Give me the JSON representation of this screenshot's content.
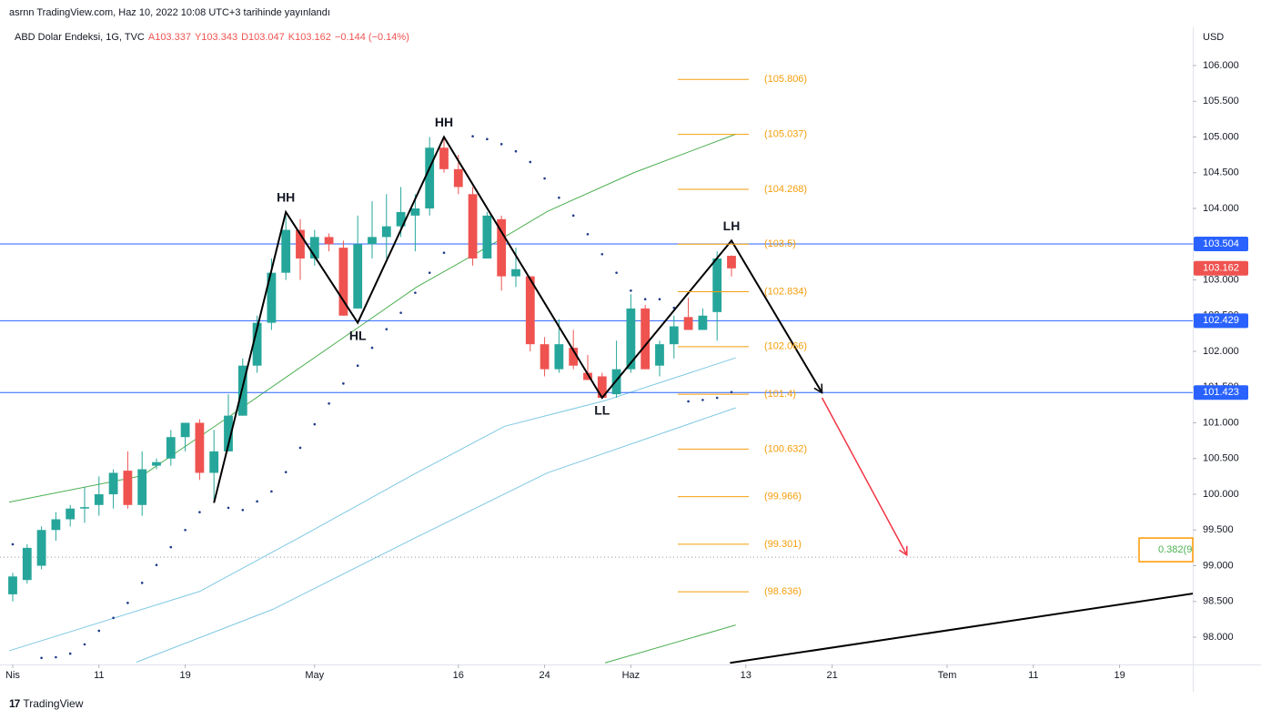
{
  "header": {
    "publisher": "asrnn TradingView.com, Haz 10, 2022 10:08 UTC+3 tarihinde yayınlandı",
    "symbol": "ABD Dolar Endeksi, 1G, TVC",
    "ohlc": [
      "A103.337",
      "Y103.343",
      "D103.047",
      "K103.162"
    ],
    "change": "−0.144 (−0.14%)"
  },
  "chart_data": {
    "type": "candlestick",
    "currency": "USD",
    "x": [
      0,
      1,
      2,
      3,
      4,
      5,
      6,
      7,
      8,
      9,
      10,
      11,
      12,
      13,
      14,
      15,
      16,
      17,
      18,
      19,
      20,
      21,
      22,
      23,
      24,
      25,
      26,
      27,
      28,
      29,
      30,
      31,
      32,
      33,
      34,
      35,
      36,
      37,
      38,
      39,
      40,
      41,
      42,
      43,
      44,
      45,
      46,
      47,
      48,
      49,
      50
    ],
    "open": [
      98.6,
      98.8,
      99.0,
      99.5,
      99.65,
      99.8,
      99.85,
      100.0,
      100.33,
      99.85,
      100.4,
      100.5,
      100.8,
      101.0,
      100.3,
      100.6,
      101.1,
      101.8,
      102.4,
      103.1,
      103.7,
      103.3,
      103.6,
      103.45,
      102.6,
      103.5,
      103.6,
      103.75,
      103.9,
      104.0,
      104.85,
      104.55,
      104.2,
      103.3,
      103.85,
      103.05,
      103.05,
      102.1,
      101.75,
      102.05,
      101.7,
      101.65,
      101.4,
      101.75,
      102.6,
      101.8,
      102.1,
      102.48,
      102.3,
      102.55,
      103.337
    ],
    "high": [
      98.9,
      99.3,
      99.55,
      99.75,
      99.85,
      100.1,
      100.25,
      100.35,
      100.6,
      100.6,
      100.5,
      100.9,
      101.0,
      101.05,
      100.9,
      101.4,
      101.9,
      102.5,
      103.3,
      103.9,
      103.85,
      103.7,
      103.65,
      103.55,
      103.9,
      104.1,
      104.2,
      104.3,
      104.2,
      105.0,
      105.0,
      104.75,
      104.3,
      103.95,
      103.9,
      103.45,
      103.05,
      102.2,
      102.45,
      102.3,
      101.95,
      101.7,
      102.15,
      102.8,
      102.65,
      102.15,
      102.5,
      102.75,
      102.6,
      103.4,
      103.343
    ],
    "low": [
      98.5,
      98.75,
      98.95,
      99.35,
      99.55,
      99.6,
      99.7,
      99.8,
      99.8,
      99.7,
      100.35,
      100.4,
      100.6,
      100.2,
      99.9,
      100.6,
      101.1,
      101.7,
      102.3,
      103.0,
      103.0,
      103.2,
      103.4,
      102.5,
      102.6,
      103.3,
      103.3,
      103.6,
      103.4,
      103.9,
      104.5,
      104.2,
      103.2,
      103.3,
      102.85,
      102.9,
      102.0,
      101.65,
      101.7,
      101.75,
      101.6,
      101.35,
      101.35,
      101.7,
      101.75,
      101.65,
      101.9,
      102.3,
      102.3,
      102.15,
      103.047
    ],
    "close": [
      98.85,
      99.25,
      99.5,
      99.65,
      99.8,
      99.82,
      100.0,
      100.3,
      99.85,
      100.35,
      100.45,
      100.8,
      101.0,
      100.3,
      100.6,
      101.1,
      101.8,
      102.4,
      103.1,
      103.7,
      103.3,
      103.6,
      103.5,
      102.5,
      103.5,
      103.6,
      103.75,
      103.95,
      104.0,
      104.85,
      104.55,
      104.3,
      103.3,
      103.9,
      103.05,
      103.15,
      102.1,
      101.75,
      102.1,
      101.8,
      101.6,
      101.35,
      101.75,
      102.6,
      101.75,
      102.1,
      102.35,
      102.3,
      102.5,
      103.3,
      103.162
    ],
    "up_color": "#26a69a",
    "down_color": "#ef5350",
    "sar": {
      "color": "#1e3a8a",
      "values": [
        99.3,
        null,
        97.71,
        97.72,
        97.77,
        97.9,
        98.09,
        98.27,
        98.48,
        98.76,
        99.01,
        99.26,
        99.5,
        99.75,
        null,
        99.81,
        99.78,
        99.9,
        100.04,
        100.31,
        100.65,
        100.98,
        101.27,
        101.55,
        101.8,
        102.05,
        102.31,
        102.54,
        102.82,
        103.1,
        103.38,
        null,
        105.01,
        104.97,
        104.9,
        104.8,
        104.65,
        104.42,
        104.15,
        103.9,
        103.64,
        103.36,
        103.1,
        102.85,
        102.73,
        102.73,
        102.61,
        101.3,
        101.32,
        101.35,
        101.43
      ]
    },
    "lines": [
      {
        "color": "#4caf50",
        "x": [
          -0.25,
          9,
          15,
          24,
          28.1,
          33.2,
          37.2,
          43.2,
          50.3
        ],
        "values": [
          99.89,
          100.26,
          101.08,
          102.33,
          102.9,
          103.48,
          103.96,
          104.5,
          105.04
        ]
      },
      {
        "color": "#4caf50",
        "x": [
          41.2,
          50.3
        ],
        "values": [
          97.64,
          98.17
        ]
      },
      {
        "color": "#7ec8e3",
        "x": [
          -0.25,
          13,
          20,
          28,
          34.2,
          41.2,
          50.3
        ],
        "values": [
          97.81,
          98.64,
          99.4,
          100.29,
          100.95,
          101.31,
          101.91
        ]
      },
      {
        "color": "#7ec8e3",
        "x": [
          8.6,
          18.1,
          28.1,
          37.2,
          50.3
        ],
        "values": [
          97.65,
          98.39,
          99.4,
          100.3,
          101.21
        ]
      },
      {
        "color": "#000000",
        "x": [
          49.9,
          82.1
        ],
        "values": [
          97.64,
          98.61
        ]
      }
    ],
    "levels": [
      {
        "value": 103.504,
        "color": "#2962ff"
      },
      {
        "value": 102.429,
        "color": "#2962ff"
      },
      {
        "value": 101.423,
        "color": "#2962ff"
      }
    ],
    "last_price": {
      "value": 103.162,
      "color": "#ef5350"
    },
    "fib": {
      "color": "#f59e0b",
      "values": [
        105.806,
        105.037,
        104.268,
        103.5,
        102.834,
        102.066,
        101.4,
        100.632,
        99.966,
        99.301,
        98.636
      ],
      "value_labels": [
        "(105.806)",
        "(105.037)",
        "(104.268)",
        "(103.5)",
        "(102.834)",
        "(102.066)",
        "(101.4)",
        "(100.632)",
        "(99.966)",
        "(99.301)",
        "(98.636)"
      ]
    },
    "zigzag": {
      "color": "#000000",
      "x": [
        14,
        19,
        24,
        30,
        41,
        50,
        56.3
      ],
      "values": [
        99.88,
        103.95,
        102.4,
        105.0,
        101.35,
        103.55,
        101.42
      ],
      "labels": [
        null,
        "HH",
        "HL",
        "HH",
        "LL",
        "LH",
        null
      ]
    },
    "arrow": {
      "color": "#f23645",
      "x": [
        56.3,
        62.2
      ],
      "values": [
        101.35,
        99.15
      ]
    },
    "dotted_level": 99.12,
    "fib_box": {
      "label": "0.382(9",
      "color": "#ff9800",
      "text_color": "#4caf50"
    },
    "xlim": [
      -0.886,
      82.09
    ],
    "ylim": [
      97.618,
      106.535
    ],
    "xticks": [
      {
        "value": 0,
        "label": "Nis"
      },
      {
        "value": 6,
        "label": "11"
      },
      {
        "value": 12,
        "label": "19"
      },
      {
        "value": 21,
        "label": "May"
      },
      {
        "value": 31,
        "label": "16"
      },
      {
        "value": 37,
        "label": "24"
      },
      {
        "value": 43,
        "label": "Haz"
      },
      {
        "value": 51,
        "label": "13"
      },
      {
        "value": 57,
        "label": "21"
      },
      {
        "value": 65,
        "label": "Tem"
      },
      {
        "value": 71,
        "label": "11"
      },
      {
        "value": 77,
        "label": "19"
      }
    ],
    "yticks": [
      {
        "value": 98,
        "label": "98.000"
      },
      {
        "value": 98.5,
        "label": "98.500"
      },
      {
        "value": 99,
        "label": "99.000"
      },
      {
        "value": 99.5,
        "label": "99.500"
      },
      {
        "value": 100,
        "label": "100.000"
      },
      {
        "value": 100.5,
        "label": "100.500"
      },
      {
        "value": 101,
        "label": "101.000"
      },
      {
        "value": 101.5,
        "label": "101.500"
      },
      {
        "value": 102,
        "label": "102.000"
      },
      {
        "value": 102.5,
        "label": "102.500"
      },
      {
        "value": 103,
        "label": "103.000"
      },
      {
        "value": 103.5,
        "label": "103.500"
      },
      {
        "value": 104,
        "label": "104.000"
      },
      {
        "value": 104.5,
        "label": "104.500"
      },
      {
        "value": 105,
        "label": "105.000"
      },
      {
        "value": 105.5,
        "label": "105.500"
      },
      {
        "value": 106,
        "label": "106.000"
      }
    ]
  },
  "footer": "TradingView"
}
